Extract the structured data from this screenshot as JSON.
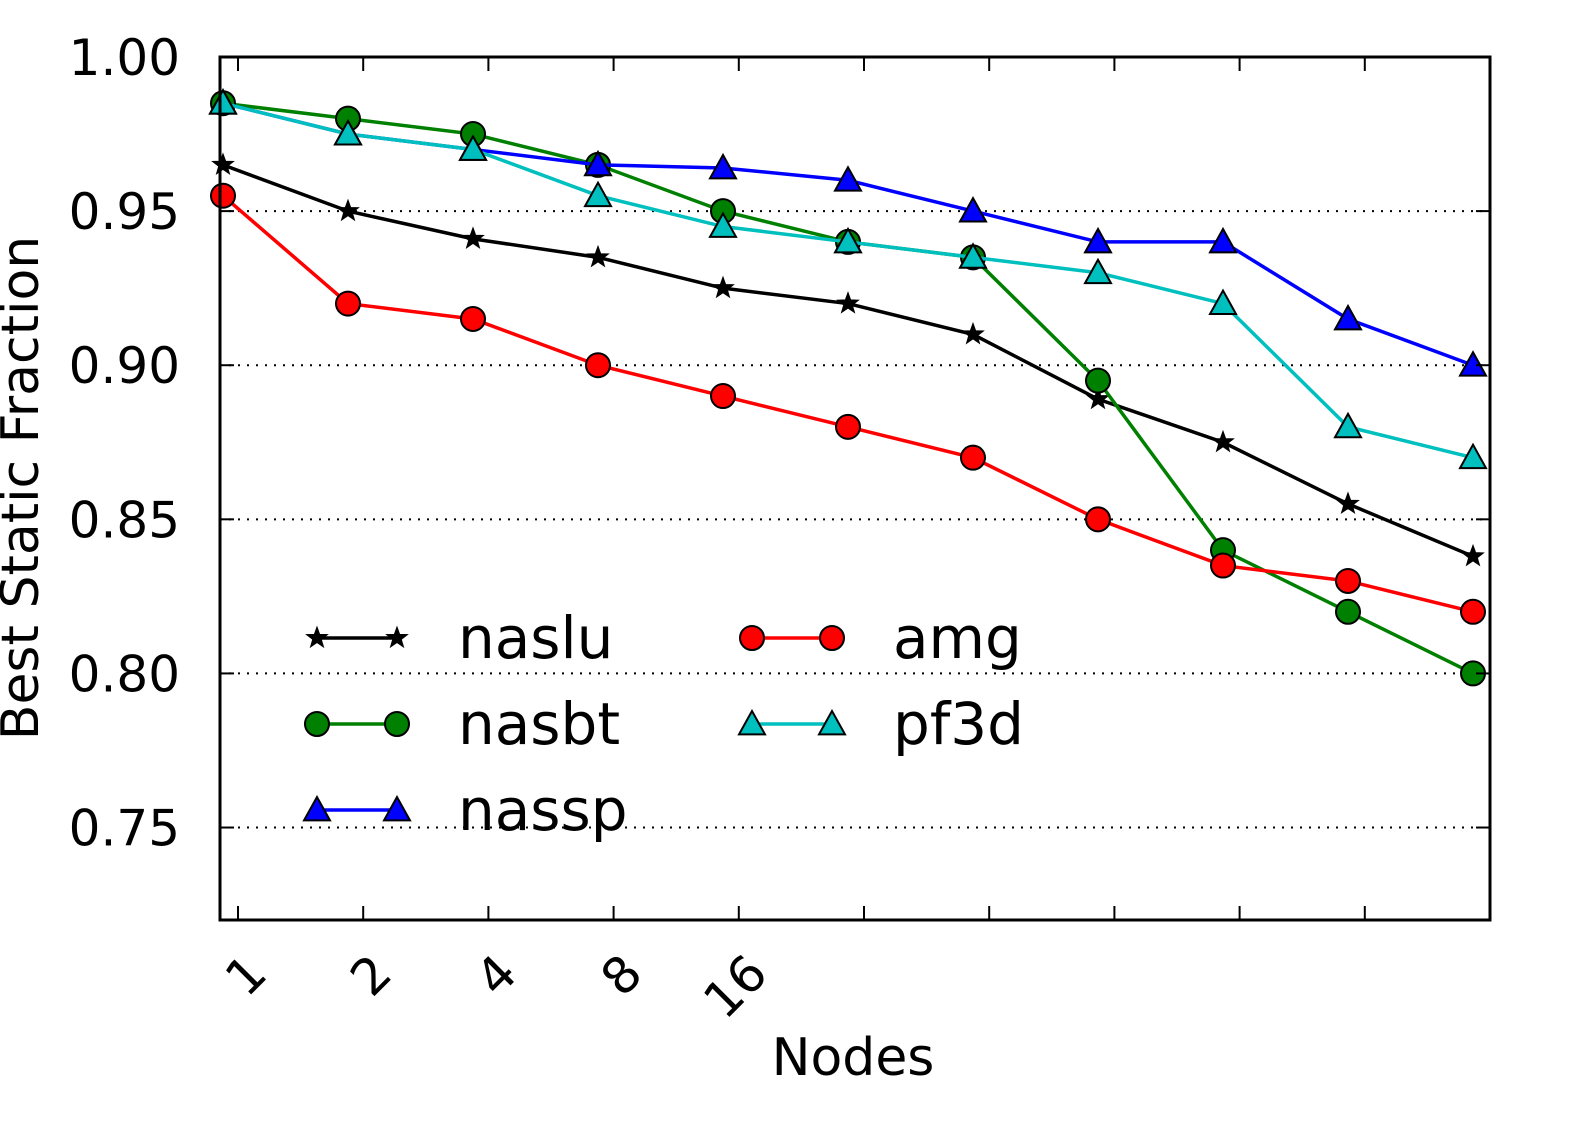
{
  "chart_data": {
    "type": "line",
    "xlabel": "Nodes",
    "ylabel": "Best Static Fraction",
    "ylim": [
      0.72,
      1.0
    ],
    "y_ticks": [
      "0.75",
      "0.80",
      "0.85",
      "0.90",
      "0.95",
      "1.00"
    ],
    "x_tick_labels": [
      "1",
      "2",
      "4",
      "8",
      "16",
      "",
      "",
      "",
      "",
      "",
      ""
    ],
    "grid": "horizontal dotted",
    "legend_placement": "lower-left",
    "legend_columns": [
      [
        "naslu",
        "nasbt",
        "nassp"
      ],
      [
        "amg",
        "pf3d"
      ]
    ],
    "series": [
      {
        "name": "naslu",
        "color": "#000000",
        "marker": "star",
        "values": [
          0.965,
          0.95,
          0.941,
          0.935,
          0.925,
          0.92,
          0.91,
          0.889,
          0.875,
          0.855,
          0.838
        ]
      },
      {
        "name": "nasbt",
        "color": "#008000",
        "marker": "circle",
        "values": [
          0.985,
          0.98,
          0.975,
          0.965,
          0.95,
          0.94,
          0.935,
          0.895,
          0.84,
          0.82,
          0.8
        ]
      },
      {
        "name": "nassp",
        "color": "#0000ff",
        "marker": "triangle",
        "values": [
          0.985,
          0.975,
          0.97,
          0.965,
          0.964,
          0.96,
          0.95,
          0.94,
          0.94,
          0.915,
          0.9
        ]
      },
      {
        "name": "amg",
        "color": "#ff0000",
        "marker": "circle",
        "values": [
          0.955,
          0.92,
          0.915,
          0.9,
          0.89,
          0.88,
          0.87,
          0.85,
          0.835,
          0.83,
          0.82
        ]
      },
      {
        "name": "pf3d",
        "color": "#00bfbf",
        "marker": "triangle",
        "values": [
          0.985,
          0.975,
          0.97,
          0.955,
          0.945,
          0.94,
          0.935,
          0.93,
          0.92,
          0.88,
          0.87
        ]
      }
    ]
  }
}
